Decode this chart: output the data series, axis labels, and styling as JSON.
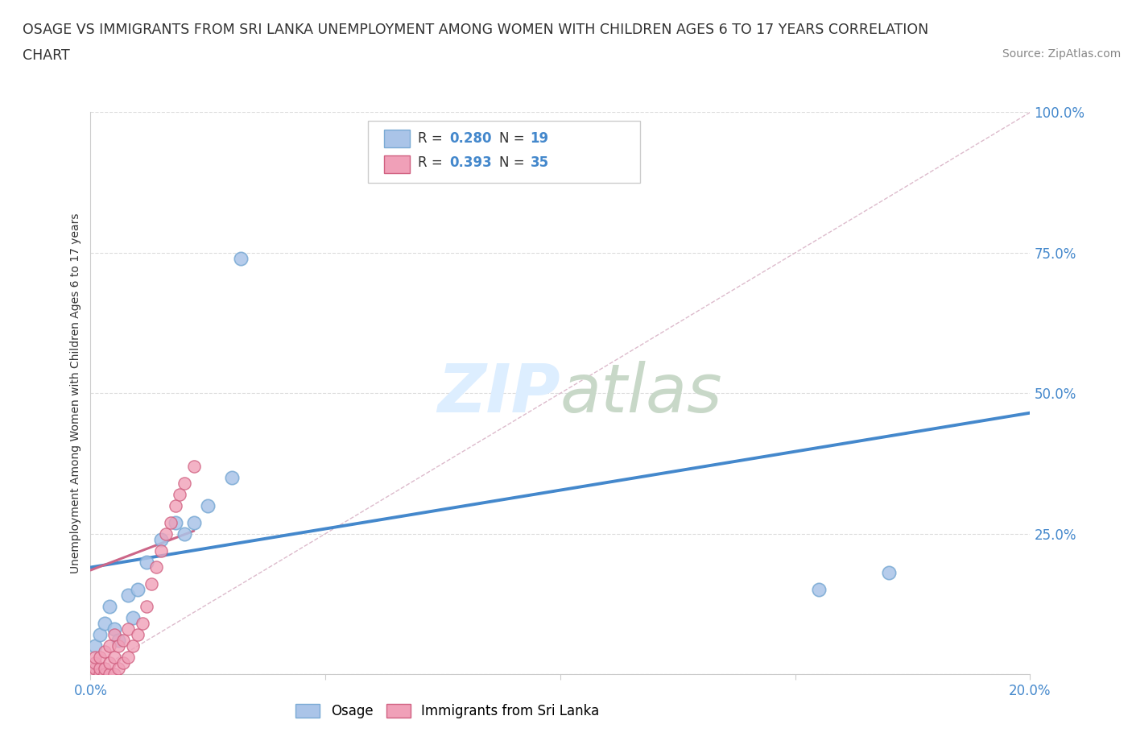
{
  "title_line1": "OSAGE VS IMMIGRANTS FROM SRI LANKA UNEMPLOYMENT AMONG WOMEN WITH CHILDREN AGES 6 TO 17 YEARS CORRELATION",
  "title_line2": "CHART",
  "source": "Source: ZipAtlas.com",
  "ylabel": "Unemployment Among Women with Children Ages 6 to 17 years",
  "xlim": [
    0.0,
    0.2
  ],
  "ylim": [
    0.0,
    1.0
  ],
  "osage_color": "#aac4e8",
  "osage_edge_color": "#7aaad4",
  "sri_lanka_color": "#f0a0b8",
  "sri_lanka_edge_color": "#d06080",
  "trend_osage_color": "#4488cc",
  "trend_sri_lanka_color": "#cc6688",
  "diagonal_color": "#ddbbcc",
  "watermark_color": "#ddeeff",
  "background_color": "#ffffff",
  "legend_R_color": "#4488cc",
  "legend_text_color": "#333333",
  "ytick_color": "#4488cc",
  "xtick_color": "#4488cc",
  "grid_color": "#dddddd",
  "osage_x": [
    0.001,
    0.002,
    0.003,
    0.004,
    0.005,
    0.006,
    0.008,
    0.009,
    0.01,
    0.012,
    0.015,
    0.018,
    0.02,
    0.022,
    0.025,
    0.03,
    0.032,
    0.155,
    0.17
  ],
  "osage_y": [
    0.05,
    0.07,
    0.09,
    0.12,
    0.08,
    0.06,
    0.14,
    0.1,
    0.15,
    0.2,
    0.24,
    0.27,
    0.25,
    0.27,
    0.3,
    0.35,
    0.74,
    0.15,
    0.18
  ],
  "sri_lanka_x": [
    0.001,
    0.001,
    0.001,
    0.001,
    0.002,
    0.002,
    0.002,
    0.003,
    0.003,
    0.003,
    0.004,
    0.004,
    0.004,
    0.005,
    0.005,
    0.005,
    0.006,
    0.006,
    0.007,
    0.007,
    0.008,
    0.008,
    0.009,
    0.01,
    0.011,
    0.012,
    0.013,
    0.014,
    0.015,
    0.016,
    0.017,
    0.018,
    0.019,
    0.02,
    0.022
  ],
  "sri_lanka_y": [
    0.0,
    0.01,
    0.02,
    0.03,
    0.0,
    0.01,
    0.03,
    0.0,
    0.01,
    0.04,
    0.0,
    0.02,
    0.05,
    0.0,
    0.03,
    0.07,
    0.01,
    0.05,
    0.02,
    0.06,
    0.03,
    0.08,
    0.05,
    0.07,
    0.09,
    0.12,
    0.16,
    0.19,
    0.22,
    0.25,
    0.27,
    0.3,
    0.32,
    0.34,
    0.37
  ],
  "osage_trend_x": [
    0.0,
    0.2
  ],
  "osage_trend_y": [
    0.19,
    0.465
  ],
  "sri_trend_x": [
    0.0,
    0.022
  ],
  "sri_trend_y": [
    0.185,
    0.255
  ]
}
